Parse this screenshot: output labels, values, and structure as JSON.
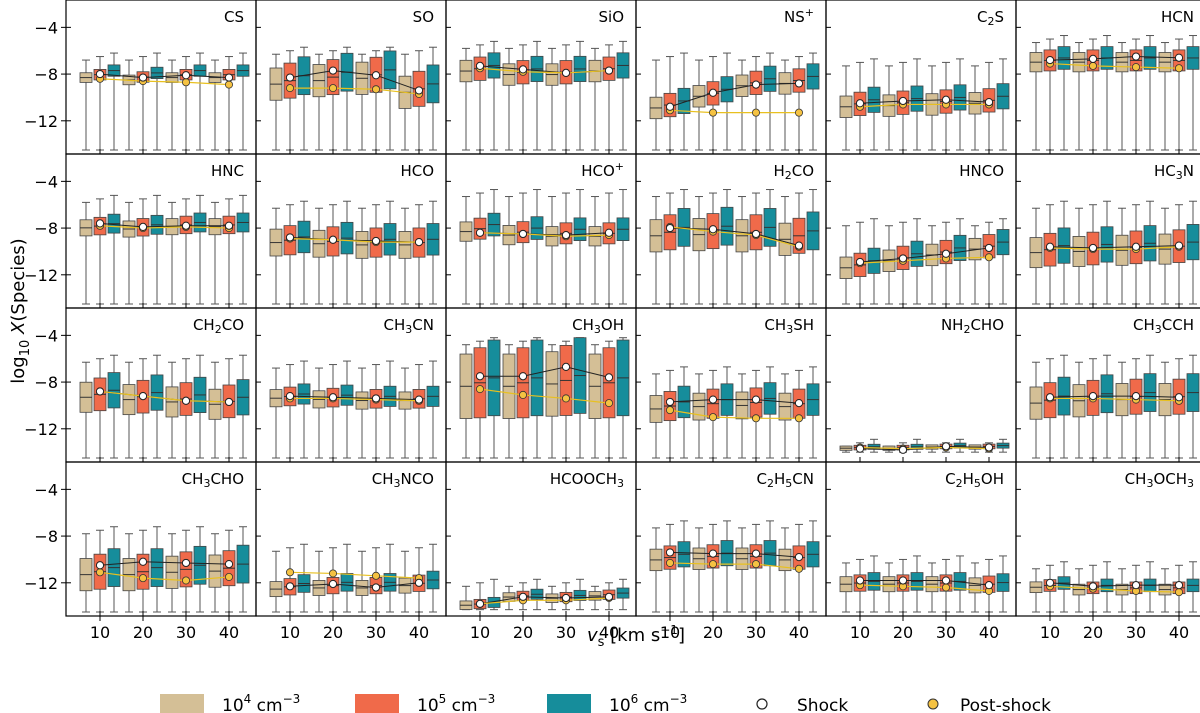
{
  "chart_data": {
    "type": "box",
    "ylabel": "log10 X(Species)",
    "xlabel": "v_s [km s^-1]",
    "x_categories": [
      10,
      20,
      30,
      40
    ],
    "x_tick_labels": [
      "10",
      "20",
      "30",
      "40"
    ],
    "ylim": [
      -14.5,
      -2
    ],
    "y_ticks": [
      -4,
      -8,
      -12
    ],
    "y_tick_labels": [
      "−4",
      "−8",
      "−12"
    ],
    "legend": [
      {
        "key": "n4",
        "pre": "10",
        "sup": "4",
        "post": " cm",
        "unit_sup": "−3",
        "color": "#d4bf96"
      },
      {
        "key": "n5",
        "pre": "10",
        "sup": "5",
        "post": " cm",
        "unit_sup": "−3",
        "color": "#f06a4a"
      },
      {
        "key": "n6",
        "pre": "10",
        "sup": "6",
        "post": " cm",
        "unit_sup": "−3",
        "color": "#168d9b"
      },
      {
        "key": "shock",
        "label": "Shock",
        "marker": "open-circle"
      },
      {
        "key": "post",
        "label": "Post-shock",
        "marker": "filled-circle",
        "color": "#f5c242"
      }
    ],
    "panels": [
      {
        "title": "CS",
        "center": [
          -8.0,
          -8.2,
          -8.0,
          -8.0
        ],
        "iqr": 0.9,
        "spread": 0.5,
        "wlo": -14.5,
        "whi": -6.5,
        "shock": [
          -8.0,
          -8.3,
          -8.1,
          -8.3
        ],
        "post": [
          -8.4,
          -8.6,
          -8.7,
          -8.9
        ]
      },
      {
        "title": "SO",
        "center": [
          -8.5,
          -8.2,
          -8.0,
          -9.2
        ],
        "iqr": 3.0,
        "spread": 0.6,
        "wlo": -14.5,
        "whi": -6.0,
        "shock": [
          -8.3,
          -7.7,
          -8.1,
          -9.4
        ],
        "post": [
          -9.2,
          -9.2,
          -9.3,
          -9.7
        ]
      },
      {
        "title": "SiO",
        "center": [
          -7.5,
          -7.8,
          -7.8,
          -7.5
        ],
        "iqr": 2.0,
        "spread": 0.4,
        "wlo": -14.5,
        "whi": -5.5,
        "shock": [
          -7.3,
          -7.6,
          -7.9,
          -7.7
        ],
        "post": [
          -7.5,
          -7.8,
          -7.9,
          -7.7
        ]
      },
      {
        "title": "NS⁺",
        "center": [
          -10.6,
          -9.6,
          -8.7,
          -8.5
        ],
        "iqr": 2.0,
        "spread": 0.5,
        "wlo": -14.5,
        "whi": -6.5,
        "shock": [
          -10.8,
          -9.6,
          -8.9,
          -8.8
        ],
        "post": [
          -11.1,
          -11.3,
          -11.3,
          -11.3
        ]
      },
      {
        "title": "C₂S",
        "center": [
          -10.5,
          -10.4,
          -10.3,
          -10.2
        ],
        "iqr": 2.0,
        "spread": 0.5,
        "wlo": -14.5,
        "whi": -7.0,
        "shock": [
          -10.5,
          -10.3,
          -10.2,
          -10.4
        ],
        "post": [
          -10.8,
          -10.6,
          -10.6,
          -10.6
        ]
      },
      {
        "title": "HCN",
        "center": [
          -6.8,
          -6.8,
          -6.8,
          -6.8
        ],
        "iqr": 1.8,
        "spread": 0.3,
        "wlo": -14.5,
        "whi": -5.0,
        "shock": [
          -6.8,
          -6.7,
          -6.5,
          -6.6
        ],
        "post": [
          -7.1,
          -7.3,
          -7.4,
          -7.5
        ]
      },
      {
        "title": "HNC",
        "center": [
          -7.8,
          -7.9,
          -7.7,
          -7.7
        ],
        "iqr": 1.5,
        "spread": 0.3,
        "wlo": -14.5,
        "whi": -5.5,
        "shock": [
          -7.6,
          -7.9,
          -7.8,
          -7.8
        ],
        "post": [
          -7.8,
          -8.0,
          -7.9,
          -8.0
        ]
      },
      {
        "title": "HCO",
        "center": [
          -9.0,
          -9.1,
          -9.2,
          -9.2
        ],
        "iqr": 2.5,
        "spread": 0.4,
        "wlo": -14.5,
        "whi": -6.0,
        "shock": [
          -8.8,
          -9.0,
          -9.1,
          -9.2
        ],
        "post": [
          -8.9,
          -9.0,
          -9.2,
          -9.2
        ]
      },
      {
        "title": "HCO⁺",
        "center": [
          -8.0,
          -8.3,
          -8.4,
          -8.4
        ],
        "iqr": 1.8,
        "spread": 0.5,
        "wlo": -14.5,
        "whi": -5.0,
        "shock": [
          -8.4,
          -8.5,
          -8.6,
          -8.4
        ],
        "post": [
          -8.4,
          -8.5,
          -8.7,
          -8.6
        ]
      },
      {
        "title": "H₂CO",
        "center": [
          -8.3,
          -8.2,
          -8.3,
          -8.6
        ],
        "iqr": 3.0,
        "spread": 0.6,
        "wlo": -14.5,
        "whi": -5.0,
        "shock": [
          -8.0,
          -8.1,
          -8.5,
          -9.5
        ],
        "post": [
          -7.9,
          -8.3,
          -8.6,
          -9.6
        ]
      },
      {
        "title": "HNCO",
        "center": [
          -11.1,
          -10.5,
          -10.0,
          -9.5
        ],
        "iqr": 2.0,
        "spread": 0.5,
        "wlo": -14.5,
        "whi": -7.5,
        "shock": [
          -10.9,
          -10.6,
          -10.2,
          -9.7
        ],
        "post": [
          -11.0,
          -10.8,
          -10.6,
          -10.5
        ]
      },
      {
        "title": "HC₃N",
        "center": [
          -9.8,
          -9.7,
          -9.6,
          -9.5
        ],
        "iqr": 2.8,
        "spread": 0.5,
        "wlo": -14.5,
        "whi": -6.0,
        "shock": [
          -9.6,
          -9.7,
          -9.6,
          -9.5
        ],
        "post": [
          -9.7,
          -9.8,
          -9.8,
          -9.6
        ]
      },
      {
        "title": "CH₂CO",
        "center": [
          -9.0,
          -9.2,
          -9.4,
          -9.6
        ],
        "iqr": 2.8,
        "spread": 0.5,
        "wlo": -14.5,
        "whi": -6.0,
        "shock": [
          -8.8,
          -9.2,
          -9.6,
          -9.7
        ],
        "post": [
          -8.8,
          -9.2,
          -9.6,
          -9.7
        ]
      },
      {
        "title": "CH₃CN",
        "center": [
          -9.2,
          -9.3,
          -9.4,
          -9.4
        ],
        "iqr": 1.6,
        "spread": 0.3,
        "wlo": -14.5,
        "whi": -6.5,
        "shock": [
          -9.2,
          -9.3,
          -9.4,
          -9.5
        ],
        "post": [
          -9.4,
          -9.4,
          -9.5,
          -9.6
        ]
      },
      {
        "title": "CH₃OH",
        "center": [
          -8.0,
          -8.0,
          -7.8,
          -8.0
        ],
        "iqr": 6.0,
        "spread": 0.6,
        "wlo": -14.5,
        "whi": -4.5,
        "shock": [
          -7.5,
          -7.5,
          -6.7,
          -7.6
        ],
        "post": [
          -8.6,
          -9.1,
          -9.4,
          -9.8
        ]
      },
      {
        "title": "CH₃SH",
        "center": [
          -10.0,
          -9.8,
          -9.7,
          -9.8
        ],
        "iqr": 2.5,
        "spread": 0.5,
        "wlo": -14.5,
        "whi": -7.0,
        "shock": [
          -9.7,
          -9.5,
          -9.5,
          -9.8
        ],
        "post": [
          -10.4,
          -11.0,
          -11.1,
          -11.1
        ]
      },
      {
        "title": "NH₂CHO",
        "center": [
          -13.6,
          -13.6,
          -13.5,
          -13.5
        ],
        "iqr": 0.4,
        "spread": 0.1,
        "wlo": -14.0,
        "whi": -13.2,
        "shock": [
          -13.7,
          -13.8,
          -13.5,
          -13.6
        ],
        "post": [
          -13.6,
          -13.7,
          -13.6,
          -13.7
        ]
      },
      {
        "title": "CH₃CCH",
        "center": [
          -9.5,
          -9.3,
          -9.2,
          -9.2
        ],
        "iqr": 3.0,
        "spread": 0.5,
        "wlo": -14.5,
        "whi": -6.0,
        "shock": [
          -9.3,
          -9.2,
          -9.2,
          -9.3
        ],
        "post": [
          -9.4,
          -9.4,
          -9.5,
          -9.6
        ]
      },
      {
        "title": "CH₃CHO",
        "center": [
          -11.0,
          -11.0,
          -10.8,
          -10.7
        ],
        "iqr": 3.0,
        "spread": 0.5,
        "wlo": -14.5,
        "whi": -7.5,
        "shock": [
          -10.5,
          -10.2,
          -10.3,
          -10.4
        ],
        "post": [
          -11.1,
          -11.6,
          -11.8,
          -11.5
        ]
      },
      {
        "title": "CH₃NCO",
        "center": [
          -12.3,
          -12.2,
          -12.2,
          -12.0
        ],
        "iqr": 1.4,
        "spread": 0.4,
        "wlo": -14.5,
        "whi": -9.0,
        "shock": [
          -12.3,
          -12.1,
          -12.4,
          -12.0
        ],
        "post": [
          -11.1,
          -11.2,
          -11.4,
          -11.6
        ]
      },
      {
        "title": "HCOOCH₃",
        "center": [
          -13.8,
          -13.1,
          -13.2,
          -13.0
        ],
        "iqr": 0.8,
        "spread": 0.2,
        "wlo": -14.3,
        "whi": -12.0,
        "shock": [
          -13.8,
          -13.2,
          -13.3,
          -13.2
        ],
        "post": [
          -13.8,
          -13.5,
          -13.5,
          -13.3
        ]
      },
      {
        "title": "C₂H₅CN",
        "center": [
          -9.8,
          -9.7,
          -9.7,
          -9.8
        ],
        "iqr": 2.0,
        "spread": 0.4,
        "wlo": -14.5,
        "whi": -7.0,
        "shock": [
          -9.4,
          -9.5,
          -9.5,
          -9.8
        ],
        "post": [
          -10.3,
          -10.4,
          -10.4,
          -10.8
        ]
      },
      {
        "title": "C₂H₅OH",
        "center": [
          -12.0,
          -12.0,
          -12.0,
          -12.1
        ],
        "iqr": 1.4,
        "spread": 0.2,
        "wlo": -14.5,
        "whi": -10.0,
        "shock": [
          -11.8,
          -11.8,
          -11.8,
          -12.2
        ],
        "post": [
          -12.2,
          -12.3,
          -12.4,
          -12.7
        ]
      },
      {
        "title": "CH₃OCH₃",
        "center": [
          -12.2,
          -12.4,
          -12.4,
          -12.4
        ],
        "iqr": 1.0,
        "spread": 0.3,
        "wlo": -14.5,
        "whi": -10.5,
        "shock": [
          -12.0,
          -12.3,
          -12.2,
          -12.2
        ],
        "post": [
          -12.3,
          -12.5,
          -12.7,
          -12.8
        ]
      }
    ]
  }
}
